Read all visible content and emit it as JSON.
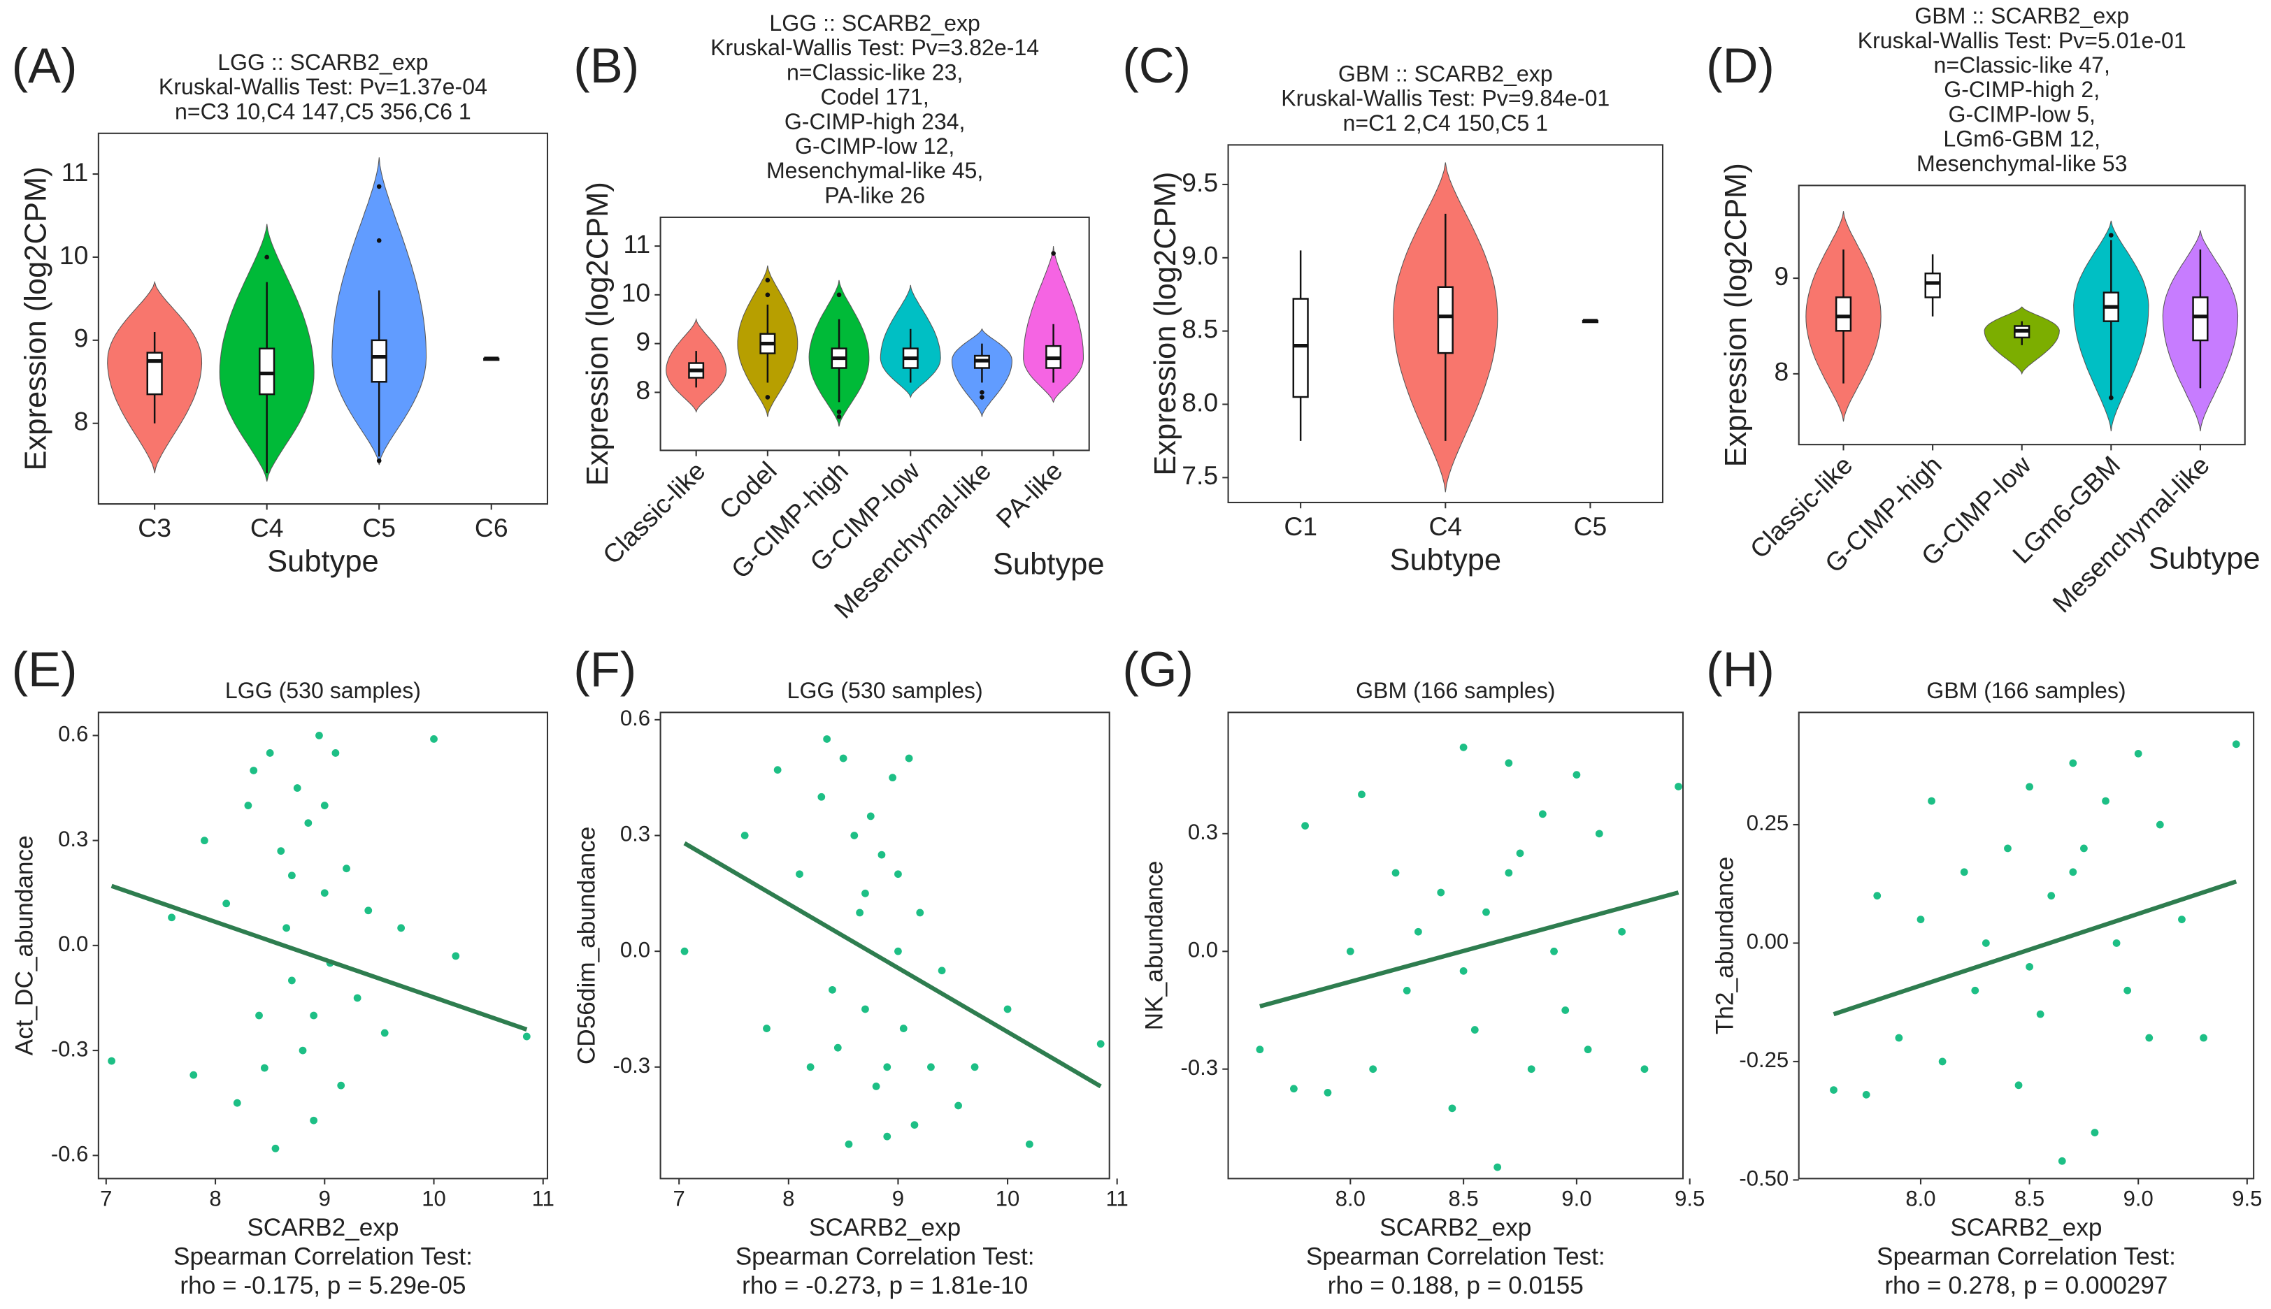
{
  "chart_data": [
    {
      "type": "violin",
      "panel_label": "(A)",
      "title": [
        "LGG :: SCARB2_exp",
        "Kruskal-Wallis Test: Pv=1.37e-04",
        "n=C3 10,C4 147,C5 356,C6 1"
      ],
      "x_label": "Subtype",
      "y_label": "Expression (log2CPM)",
      "ylim": [
        7.03,
        11.49
      ],
      "yticks": [
        8,
        9,
        10,
        11
      ],
      "categories": [
        "C3",
        "C4",
        "C5",
        "C6"
      ],
      "groups": [
        {
          "color": "#F8766D",
          "extent": [
            7.4,
            9.7
          ],
          "box": [
            8.0,
            8.35,
            8.75,
            8.85,
            9.1
          ],
          "outliers": []
        },
        {
          "color": "#00BA38",
          "extent": [
            7.3,
            10.4
          ],
          "box": [
            7.4,
            8.35,
            8.6,
            8.9,
            9.7
          ],
          "outliers": [
            10.0
          ]
        },
        {
          "color": "#619CFF",
          "extent": [
            7.5,
            11.2
          ],
          "box": [
            7.6,
            8.5,
            8.8,
            9.0,
            9.6
          ],
          "outliers": [
            10.85,
            10.2,
            7.55
          ]
        },
        {
          "color": "#C77CFF",
          "extent": null,
          "box": [
            8.78,
            8.78,
            8.78,
            8.78,
            8.78
          ],
          "outliers": []
        }
      ]
    },
    {
      "type": "violin",
      "panel_label": "(B)",
      "title": [
        "LGG :: SCARB2_exp",
        "Kruskal-Wallis Test: Pv=3.82e-14",
        "n=Classic-like 23,",
        "Codel 171,",
        "G-CIMP-high 234,",
        "G-CIMP-low 12,",
        "Mesenchymal-like 45,",
        "PA-like 26"
      ],
      "x_label": "Subtype",
      "y_label": "Expression (log2CPM)",
      "ylim": [
        6.81,
        11.59
      ],
      "yticks": [
        8,
        9,
        10,
        11
      ],
      "categories": [
        "Classic-like",
        "Codel",
        "G-CIMP-high",
        "G-CIMP-low",
        "Mesenchymal-like",
        "PA-like"
      ],
      "groups": [
        {
          "color": "#F8766D",
          "extent": [
            7.6,
            9.5
          ],
          "box": [
            8.1,
            8.3,
            8.45,
            8.6,
            8.85
          ],
          "outliers": []
        },
        {
          "color": "#B79F00",
          "extent": [
            7.5,
            10.6
          ],
          "box": [
            8.2,
            8.8,
            9.0,
            9.2,
            9.8
          ],
          "outliers": [
            10.3,
            10.0,
            7.9
          ]
        },
        {
          "color": "#00BA38",
          "extent": [
            7.3,
            10.3
          ],
          "box": [
            7.8,
            8.5,
            8.7,
            8.9,
            9.5
          ],
          "outliers": [
            10.0,
            7.6,
            7.5
          ]
        },
        {
          "color": "#00BFC4",
          "extent": [
            7.9,
            10.2
          ],
          "box": [
            8.2,
            8.5,
            8.7,
            8.9,
            9.3
          ],
          "outliers": []
        },
        {
          "color": "#619CFF",
          "extent": [
            7.5,
            9.3
          ],
          "box": [
            8.2,
            8.5,
            8.65,
            8.75,
            9.0
          ],
          "outliers": [
            7.9,
            8.0
          ]
        },
        {
          "color": "#F564E3",
          "extent": [
            7.8,
            11.0
          ],
          "box": [
            8.2,
            8.5,
            8.7,
            8.95,
            9.4
          ],
          "outliers": [
            10.85
          ]
        }
      ]
    },
    {
      "type": "violin",
      "panel_label": "(C)",
      "title": [
        "GBM :: SCARB2_exp",
        "Kruskal-Wallis Test: Pv=9.84e-01",
        "n=C1 2,C4 150,C5 1"
      ],
      "x_label": "Subtype",
      "y_label": "Expression (log2CPM)",
      "ylim": [
        7.33,
        9.77
      ],
      "yticks": [
        7.5,
        {
          "value": 8,
          "label": "8.0"
        },
        8.5,
        {
          "value": 9,
          "label": "9.0"
        },
        9.5
      ],
      "categories": [
        "C1",
        "C4",
        "C5"
      ],
      "groups": [
        {
          "color": "#F8766D",
          "extent": null,
          "box": [
            7.75,
            8.05,
            8.4,
            8.72,
            9.05
          ],
          "outliers": []
        },
        {
          "color": "#F8766D",
          "extent": [
            7.4,
            9.65
          ],
          "box": [
            7.75,
            8.35,
            8.6,
            8.8,
            9.3
          ],
          "outliers": []
        },
        {
          "color": "#619CFF",
          "extent": null,
          "box": [
            8.57,
            8.57,
            8.57,
            8.57,
            8.57
          ],
          "outliers": []
        }
      ]
    },
    {
      "type": "violin",
      "panel_label": "(D)",
      "title": [
        "GBM :: SCARB2_exp",
        "Kruskal-Wallis Test: Pv=5.01e-01",
        "n=Classic-like 47,",
        "G-CIMP-high 2,",
        "G-CIMP-low 5,",
        "LGm6-GBM 12,",
        "Mesenchymal-like 53"
      ],
      "x_label": "Subtype",
      "y_label": "Expression (log2CPM)",
      "ylim": [
        7.26,
        9.97
      ],
      "yticks": [
        8,
        9
      ],
      "categories": [
        "Classic-like",
        "G-CIMP-high",
        "G-CIMP-low",
        "LGm6-GBM",
        "Mesenchymal-like"
      ],
      "groups": [
        {
          "color": "#F8766D",
          "extent": [
            7.5,
            9.7
          ],
          "box": [
            7.9,
            8.45,
            8.6,
            8.8,
            9.3
          ],
          "outliers": []
        },
        {
          "color": "#A3A500",
          "extent": null,
          "box": [
            8.6,
            8.8,
            8.95,
            9.05,
            9.25
          ],
          "outliers": []
        },
        {
          "color": "#7CAE00",
          "extent": [
            8.0,
            8.7
          ],
          "box": [
            8.3,
            8.38,
            8.45,
            8.5,
            8.55
          ],
          "outliers": []
        },
        {
          "color": "#00BFC4",
          "extent": [
            7.4,
            9.6
          ],
          "box": [
            7.75,
            8.55,
            8.7,
            8.85,
            9.4
          ],
          "outliers": [
            9.45,
            7.75
          ]
        },
        {
          "color": "#C77CFF",
          "extent": [
            7.4,
            9.5
          ],
          "box": [
            7.85,
            8.35,
            8.6,
            8.8,
            9.3
          ],
          "outliers": []
        }
      ]
    },
    {
      "type": "scatter",
      "panel_label": "(E)",
      "title": [
        "LGG (530 samples)"
      ],
      "x_label": "SCARB2_exp",
      "y_label": "Act_DC_abundance",
      "stats": [
        "Spearman Correlation Test:",
        "rho = -0.175, p = 5.29e-05"
      ],
      "color": "#1dbf85",
      "fit_color": "#2e7d4f",
      "xlim": [
        6.93,
        11.04
      ],
      "xticks": [
        7,
        8,
        9,
        10,
        11
      ],
      "ylim": [
        -0.666,
        0.666
      ],
      "yticks": [
        0.6,
        0.3,
        {
          "value": 0,
          "label": "0.0"
        },
        -0.3,
        -0.6
      ],
      "x": [
        7.05,
        7.6,
        7.8,
        7.9,
        8.1,
        8.2,
        8.3,
        8.35,
        8.4,
        8.5,
        8.55,
        8.6,
        8.65,
        8.7,
        8.75,
        8.8,
        8.85,
        8.9,
        8.95,
        9.0,
        9.05,
        9.1,
        9.15,
        9.2,
        9.3,
        9.4,
        9.55,
        9.7,
        10.0,
        10.2,
        10.85,
        8.45,
        8.7,
        8.9,
        9.0
      ],
      "y": [
        -0.33,
        0.08,
        -0.37,
        0.3,
        0.12,
        -0.45,
        0.4,
        0.5,
        -0.2,
        0.55,
        -0.58,
        0.27,
        0.05,
        -0.1,
        0.45,
        -0.3,
        0.35,
        -0.5,
        0.6,
        0.15,
        -0.05,
        0.55,
        -0.4,
        0.22,
        -0.15,
        0.1,
        -0.25,
        0.05,
        0.59,
        -0.03,
        -0.26,
        -0.35,
        0.2,
        -0.2,
        0.4
      ],
      "fit": {
        "x": [
          7.05,
          10.85
        ],
        "y": [
          0.17,
          -0.24
        ]
      }
    },
    {
      "type": "scatter",
      "panel_label": "(F)",
      "title": [
        "LGG (530 samples)"
      ],
      "x_label": "SCARB2_exp",
      "y_label": "CD56dim_abundance",
      "stats": [
        "Spearman Correlation Test:",
        "rho = -0.273, p = 1.81e-10"
      ],
      "color": "#1dbf85",
      "fit_color": "#2e7d4f",
      "xlim": [
        6.83,
        10.93
      ],
      "xticks": [
        7,
        8,
        9,
        10,
        11
      ],
      "ylim": [
        -0.589,
        0.619
      ],
      "yticks": [
        0.6,
        0.3,
        {
          "value": 0,
          "label": "0.0"
        },
        -0.3
      ],
      "x": [
        7.05,
        7.6,
        7.8,
        7.9,
        8.1,
        8.2,
        8.3,
        8.35,
        8.4,
        8.5,
        8.55,
        8.6,
        8.65,
        8.7,
        8.75,
        8.8,
        8.85,
        8.9,
        8.95,
        9.0,
        9.05,
        9.1,
        9.15,
        9.2,
        9.3,
        9.4,
        9.55,
        9.7,
        10.0,
        10.2,
        10.85,
        8.45,
        8.7,
        8.9,
        9.0
      ],
      "y": [
        0.0,
        0.3,
        -0.2,
        0.47,
        0.2,
        -0.3,
        0.4,
        0.55,
        -0.1,
        0.5,
        -0.5,
        0.3,
        0.1,
        -0.15,
        0.35,
        -0.35,
        0.25,
        -0.48,
        0.45,
        0.0,
        -0.2,
        0.5,
        -0.45,
        0.1,
        -0.3,
        -0.05,
        -0.4,
        -0.3,
        -0.15,
        -0.5,
        -0.24,
        -0.25,
        0.15,
        -0.3,
        0.2
      ],
      "fit": {
        "x": [
          7.05,
          10.85
        ],
        "y": [
          0.28,
          -0.35
        ]
      }
    },
    {
      "type": "scatter",
      "panel_label": "(G)",
      "title": [
        "GBM (166 samples)"
      ],
      "x_label": "SCARB2_exp",
      "y_label": "NK_abundance",
      "stats": [
        "Spearman Correlation Test:",
        "rho = 0.188, p = 0.0155"
      ],
      "color": "#1dbf85",
      "fit_color": "#2e7d4f",
      "xlim": [
        7.46,
        9.47
      ],
      "xticks": [
        {
          "value": 8,
          "label": "8.0"
        },
        8.5,
        {
          "value": 9,
          "label": "9.0"
        },
        9.5
      ],
      "ylim": [
        -0.579,
        0.609
      ],
      "yticks": [
        0.3,
        {
          "value": 0,
          "label": "0.0"
        },
        -0.3
      ],
      "x": [
        7.6,
        7.75,
        7.8,
        7.9,
        8.0,
        8.05,
        8.1,
        8.2,
        8.25,
        8.3,
        8.4,
        8.45,
        8.5,
        8.55,
        8.6,
        8.65,
        8.7,
        8.75,
        8.8,
        8.85,
        8.9,
        8.95,
        9.0,
        9.05,
        9.1,
        9.2,
        9.3,
        9.45,
        8.5,
        8.7
      ],
      "y": [
        -0.25,
        -0.35,
        0.32,
        -0.36,
        0.0,
        0.4,
        -0.3,
        0.2,
        -0.1,
        0.05,
        0.15,
        -0.4,
        0.52,
        -0.2,
        0.1,
        -0.55,
        0.48,
        0.25,
        -0.3,
        0.35,
        0.0,
        -0.15,
        0.45,
        -0.25,
        0.3,
        0.05,
        -0.3,
        0.42,
        -0.05,
        0.2
      ],
      "fit": {
        "x": [
          7.6,
          9.45
        ],
        "y": [
          -0.14,
          0.15
        ]
      }
    },
    {
      "type": "scatter",
      "panel_label": "(H)",
      "title": [
        "GBM (166 samples)"
      ],
      "x_label": "SCARB2_exp",
      "y_label": "Th2_abundance",
      "stats": [
        "Spearman Correlation Test:",
        "rho = 0.278, p = 0.000297"
      ],
      "color": "#1dbf85",
      "fit_color": "#2e7d4f",
      "xlim": [
        7.44,
        9.53
      ],
      "xticks": [
        {
          "value": 8,
          "label": "8.0"
        },
        8.5,
        {
          "value": 9,
          "label": "9.0"
        },
        9.5
      ],
      "ylim": [
        -0.497,
        0.487
      ],
      "yticks": [
        0.25,
        {
          "value": 0,
          "label": "0.00"
        },
        -0.25,
        {
          "value": -0.5,
          "label": "-0.50"
        }
      ],
      "x": [
        7.6,
        7.75,
        7.8,
        7.9,
        8.0,
        8.05,
        8.1,
        8.2,
        8.25,
        8.3,
        8.4,
        8.45,
        8.5,
        8.55,
        8.6,
        8.65,
        8.7,
        8.75,
        8.8,
        8.85,
        8.9,
        8.95,
        9.0,
        9.05,
        9.1,
        9.2,
        9.3,
        9.45,
        8.5,
        8.7
      ],
      "y": [
        -0.31,
        -0.32,
        0.1,
        -0.2,
        0.05,
        0.3,
        -0.25,
        0.15,
        -0.1,
        0.0,
        0.2,
        -0.3,
        0.33,
        -0.15,
        0.1,
        -0.46,
        0.38,
        0.2,
        -0.4,
        0.3,
        0.0,
        -0.1,
        0.4,
        -0.2,
        0.25,
        0.05,
        -0.2,
        0.42,
        -0.05,
        0.15
      ],
      "fit": {
        "x": [
          7.6,
          9.45
        ],
        "y": [
          -0.15,
          0.13
        ]
      }
    }
  ]
}
